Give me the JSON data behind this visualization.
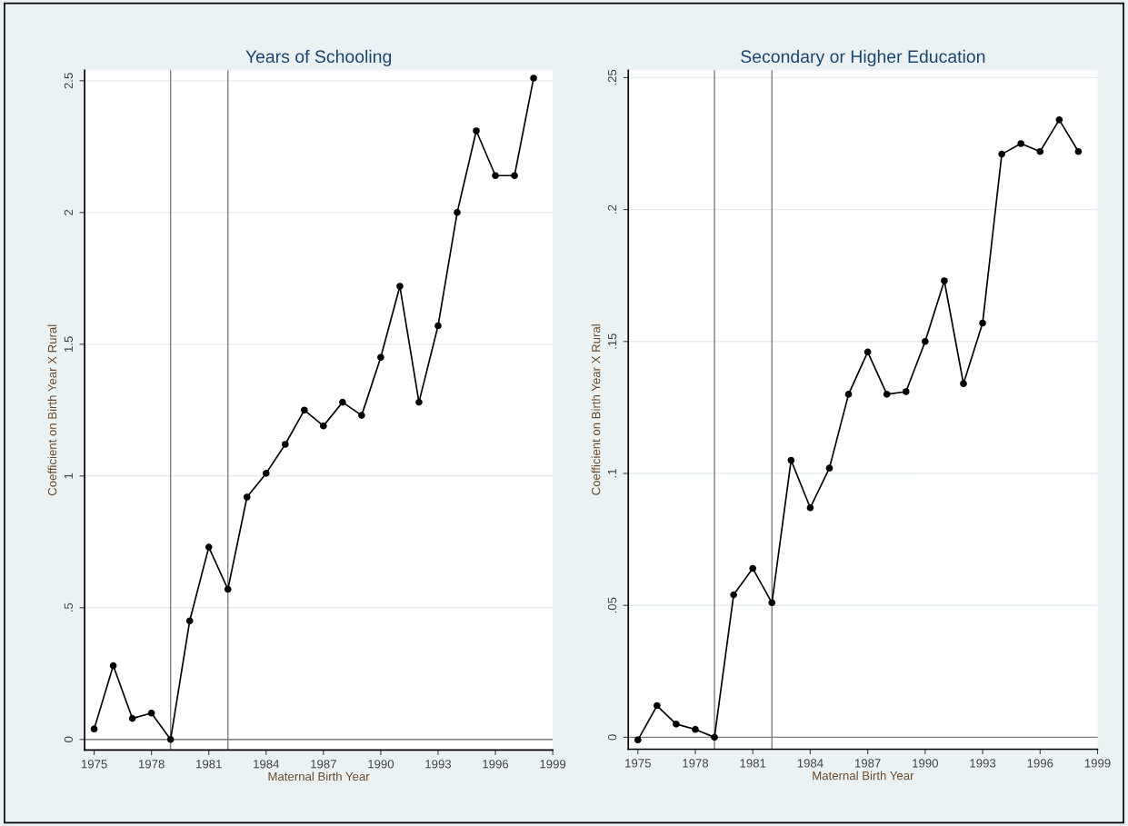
{
  "chart_data": [
    {
      "type": "line",
      "title": "Years of Schooling",
      "xlabel": "Maternal Birth Year",
      "ylabel": "Coefficient on Birth Year X Rural",
      "x": [
        1975,
        1976,
        1977,
        1978,
        1979,
        1980,
        1981,
        1982,
        1983,
        1984,
        1985,
        1986,
        1987,
        1988,
        1989,
        1990,
        1991,
        1992,
        1993,
        1994,
        1995,
        1996,
        1997,
        1998
      ],
      "series": [
        {
          "color": "#000000",
          "values": [
            0.04,
            0.28,
            0.08,
            0.1,
            0.0,
            0.45,
            0.73,
            0.57,
            0.92,
            1.01,
            1.12,
            1.25,
            1.19,
            1.28,
            1.23,
            1.45,
            1.72,
            1.28,
            1.57,
            2.0,
            2.31,
            2.14,
            2.14,
            2.51
          ]
        }
      ],
      "xlim": [
        1974.5,
        1999
      ],
      "xticks": [
        1975,
        1978,
        1981,
        1984,
        1987,
        1990,
        1993,
        1996,
        1999
      ],
      "ylim": [
        -0.04,
        2.54
      ],
      "yticks": [
        {
          "value": 0,
          "label": "0"
        },
        {
          "value": 0.5,
          "label": ".5"
        },
        {
          "value": 1,
          "label": "1"
        },
        {
          "value": 1.5,
          "label": "1.5"
        },
        {
          "value": 2,
          "label": "2"
        },
        {
          "value": 2.5,
          "label": "2.5"
        }
      ],
      "ref_lines": [
        {
          "axis": "x",
          "value": 1979,
          "color": "#7f7f7f"
        },
        {
          "axis": "x",
          "value": 1982,
          "color": "#7f7f7f"
        },
        {
          "axis": "y",
          "value": 0,
          "color": "#7f7f7f"
        }
      ],
      "grid": "y",
      "marker": "circle",
      "line_style": "solid"
    },
    {
      "type": "line",
      "title": "Secondary or Higher Education",
      "xlabel": "Maternal Birth Year",
      "ylabel": "Coefficient on Birth Year X Rural",
      "x": [
        1975,
        1976,
        1977,
        1978,
        1979,
        1980,
        1981,
        1982,
        1983,
        1984,
        1985,
        1986,
        1987,
        1988,
        1989,
        1990,
        1991,
        1992,
        1993,
        1994,
        1995,
        1996,
        1997,
        1998
      ],
      "series": [
        {
          "color": "#000000",
          "values": [
            -0.001,
            0.012,
            0.005,
            0.003,
            0.0,
            0.054,
            0.064,
            0.051,
            0.105,
            0.087,
            0.102,
            0.13,
            0.146,
            0.13,
            0.131,
            0.15,
            0.173,
            0.134,
            0.157,
            0.221,
            0.225,
            0.222,
            0.234,
            0.222
          ]
        }
      ],
      "xlim": [
        1974.5,
        1999
      ],
      "xticks": [
        1975,
        1978,
        1981,
        1984,
        1987,
        1990,
        1993,
        1996,
        1999
      ],
      "ylim": [
        -0.0045,
        0.2528
      ],
      "yticks": [
        {
          "value": 0,
          "label": "0"
        },
        {
          "value": 0.05,
          "label": ".05"
        },
        {
          "value": 0.1,
          "label": ".1"
        },
        {
          "value": 0.15,
          "label": ".15"
        },
        {
          "value": 0.2,
          "label": ".2"
        },
        {
          "value": 0.25,
          "label": ".25"
        }
      ],
      "ref_lines": [
        {
          "axis": "x",
          "value": 1979,
          "color": "#7f7f7f"
        },
        {
          "axis": "x",
          "value": 1982,
          "color": "#7f7f7f"
        },
        {
          "axis": "y",
          "value": 0,
          "color": "#7f7f7f"
        }
      ],
      "grid": "y",
      "marker": "circle",
      "line_style": "solid"
    }
  ]
}
